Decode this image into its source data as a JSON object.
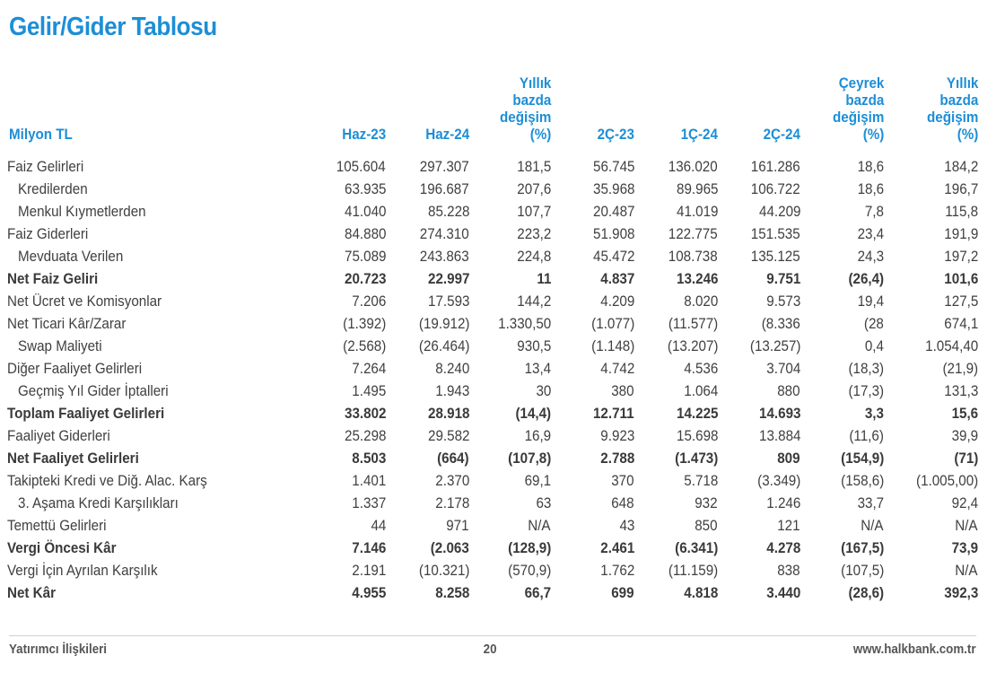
{
  "title": "Gelir/Gider Tablosu",
  "header": {
    "label": "Milyon TL",
    "columns": [
      [
        "Haz-23"
      ],
      [
        "Haz-24"
      ],
      [
        "Yıllık",
        "bazda",
        "değişim",
        "(%)"
      ],
      [
        "2Ç-23"
      ],
      [
        "1Ç-24"
      ],
      [
        "2Ç-24"
      ],
      [
        "Çeyrek",
        "bazda",
        "değişim",
        "(%)"
      ],
      [
        "Yıllık",
        "bazda",
        "değişim",
        "(%)"
      ]
    ]
  },
  "rows": [
    {
      "label": "Faiz Gelirleri",
      "indent": false,
      "bold": false,
      "values": [
        "105.604",
        "297.307",
        "181,5",
        "56.745",
        "136.020",
        "161.286",
        "18,6",
        "184,2"
      ]
    },
    {
      "label": "Kredilerden",
      "indent": true,
      "bold": false,
      "values": [
        "63.935",
        "196.687",
        "207,6",
        "35.968",
        "89.965",
        "106.722",
        "18,6",
        "196,7"
      ]
    },
    {
      "label": "Menkul Kıymetlerden",
      "indent": true,
      "bold": false,
      "values": [
        "41.040",
        "85.228",
        "107,7",
        "20.487",
        "41.019",
        "44.209",
        "7,8",
        "115,8"
      ]
    },
    {
      "label": "Faiz Giderleri",
      "indent": false,
      "bold": false,
      "values": [
        "84.880",
        "274.310",
        "223,2",
        "51.908",
        "122.775",
        "151.535",
        "23,4",
        "191,9"
      ]
    },
    {
      "label": "Mevduata Verilen",
      "indent": true,
      "bold": false,
      "values": [
        "75.089",
        "243.863",
        "224,8",
        "45.472",
        "108.738",
        "135.125",
        "24,3",
        "197,2"
      ]
    },
    {
      "label": "Net Faiz Geliri",
      "indent": false,
      "bold": true,
      "values": [
        "20.723",
        "22.997",
        "11",
        "4.837",
        "13.246",
        "9.751",
        "(26,4)",
        "101,6"
      ]
    },
    {
      "label": "Net Ücret ve Komisyonlar",
      "indent": false,
      "bold": false,
      "values": [
        "7.206",
        "17.593",
        "144,2",
        "4.209",
        "8.020",
        "9.573",
        "19,4",
        "127,5"
      ]
    },
    {
      "label": "Net Ticari Kâr/Zarar",
      "indent": false,
      "bold": false,
      "values": [
        "(1.392)",
        "(19.912)",
        "1.330,50",
        "(1.077)",
        "(11.577)",
        "(8.336",
        "(28",
        "674,1"
      ]
    },
    {
      "label": "Swap Maliyeti",
      "indent": true,
      "bold": false,
      "values": [
        "(2.568)",
        "(26.464)",
        "930,5",
        "(1.148)",
        "(13.207)",
        "(13.257)",
        "0,4",
        "1.054,40"
      ]
    },
    {
      "label": "Diğer Faaliyet Gelirleri",
      "indent": false,
      "bold": false,
      "values": [
        "7.264",
        "8.240",
        "13,4",
        "4.742",
        "4.536",
        "3.704",
        "(18,3)",
        "(21,9)"
      ]
    },
    {
      "label": "Geçmiş Yıl Gider İptalleri",
      "indent": true,
      "bold": false,
      "values": [
        "1.495",
        "1.943",
        "30",
        "380",
        "1.064",
        "880",
        "(17,3)",
        "131,3"
      ]
    },
    {
      "label": "Toplam Faaliyet Gelirleri",
      "indent": false,
      "bold": true,
      "values": [
        "33.802",
        "28.918",
        "(14,4)",
        "12.711",
        "14.225",
        "14.693",
        "3,3",
        "15,6"
      ]
    },
    {
      "label": "Faaliyet Giderleri",
      "indent": false,
      "bold": false,
      "values": [
        "25.298",
        "29.582",
        "16,9",
        "9.923",
        "15.698",
        "13.884",
        "(11,6)",
        "39,9"
      ]
    },
    {
      "label": "Net Faaliyet Gelirleri",
      "indent": false,
      "bold": true,
      "values": [
        "8.503",
        "(664)",
        "(107,8)",
        "2.788",
        "(1.473)",
        "809",
        "(154,9)",
        "(71)"
      ]
    },
    {
      "label": "Takipteki Kredi ve Diğ. Alac. Karş",
      "indent": false,
      "bold": false,
      "values": [
        "1.401",
        "2.370",
        "69,1",
        "370",
        "5.718",
        "(3.349)",
        "(158,6)",
        "(1.005,00)"
      ]
    },
    {
      "label": "3. Aşama Kredi Karşılıkları",
      "indent": true,
      "bold": false,
      "values": [
        "1.337",
        "2.178",
        "63",
        "648",
        "932",
        "1.246",
        "33,7",
        "92,4"
      ]
    },
    {
      "label": "Temettü Gelirleri",
      "indent": false,
      "bold": false,
      "values": [
        "44",
        "971",
        "N/A",
        "43",
        "850",
        "121",
        "N/A",
        "N/A"
      ]
    },
    {
      "label": "Vergi Öncesi Kâr",
      "indent": false,
      "bold": true,
      "values": [
        "7.146",
        "(2.063",
        "(128,9)",
        "2.461",
        "(6.341)",
        "4.278",
        "(167,5)",
        "73,9"
      ]
    },
    {
      "label": "Vergi İçin Ayrılan Karşılık",
      "indent": false,
      "bold": false,
      "values": [
        "2.191",
        "(10.321)",
        "(570,9)",
        "1.762",
        "(11.159)",
        "838",
        "(107,5)",
        "N/A"
      ]
    },
    {
      "label": "Net Kâr",
      "indent": false,
      "bold": true,
      "values": [
        "4.955",
        "8.258",
        "66,7",
        "699",
        "4.818",
        "3.440",
        "(28,6)",
        "392,3"
      ]
    }
  ],
  "footer": {
    "left": "Yatırımcı İlişkileri",
    "page": "20",
    "right": "www.halkbank.com.tr"
  }
}
